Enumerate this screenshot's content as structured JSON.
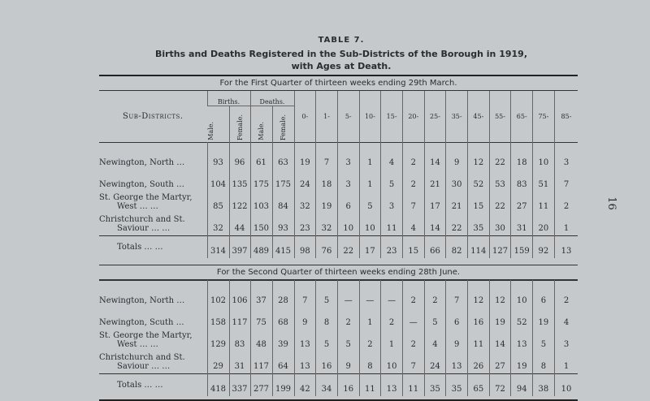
{
  "title": "TABLE 7.",
  "subtitle_line1": "Births and Deaths Registered in the Sub-Districts of the Borough in 1919,",
  "subtitle_line2": "with Ages at Death.",
  "page_number": "16",
  "headers": {
    "sub_districts": "Sub-Districts.",
    "births": "Births.",
    "deaths": "Deaths.",
    "male": "Male.",
    "female": "Female.",
    "ages": [
      "0-",
      "1-",
      "5-",
      "10-",
      "15-",
      "20-",
      "25-",
      "35-",
      "45-",
      "55-",
      "65-",
      "75-",
      "85-"
    ]
  },
  "quarters": [
    {
      "heading": "For the First Quarter of thirteen weeks ending 29th March.",
      "rows": [
        {
          "name": [
            "Newington, North …"
          ],
          "values": [
            "93",
            "96",
            "61",
            "63",
            "19",
            "7",
            "3",
            "1",
            "4",
            "2",
            "14",
            "9",
            "12",
            "22",
            "18",
            "10",
            "3"
          ]
        },
        {
          "name": [
            "Newington, South …"
          ],
          "values": [
            "104",
            "135",
            "175",
            "175",
            "24",
            "18",
            "3",
            "1",
            "5",
            "2",
            "21",
            "30",
            "52",
            "53",
            "83",
            "51",
            "7"
          ]
        },
        {
          "name": [
            "St. George the Martyr,",
            "West … …"
          ],
          "values": [
            "85",
            "122",
            "103",
            "84",
            "32",
            "19",
            "6",
            "5",
            "3",
            "7",
            "17",
            "21",
            "15",
            "22",
            "27",
            "11",
            "2"
          ]
        },
        {
          "name": [
            "Christchurch and St.",
            "Saviour … …"
          ],
          "values": [
            "32",
            "44",
            "150",
            "93",
            "23",
            "32",
            "10",
            "10",
            "11",
            "4",
            "14",
            "22",
            "35",
            "30",
            "31",
            "20",
            "1"
          ]
        }
      ],
      "totals": {
        "label": "Totals … …",
        "values": [
          "314",
          "397",
          "489",
          "415",
          "98",
          "76",
          "22",
          "17",
          "23",
          "15",
          "66",
          "82",
          "114",
          "127",
          "159",
          "92",
          "13"
        ]
      }
    },
    {
      "heading": "For the Second Quarter of thirteen weeks ending 28th June.",
      "rows": [
        {
          "name": [
            "Newington, North …"
          ],
          "values": [
            "102",
            "106",
            "37",
            "28",
            "7",
            "5",
            "—",
            "—",
            "—",
            "2",
            "2",
            "7",
            "12",
            "12",
            "10",
            "6",
            "2"
          ]
        },
        {
          "name": [
            "Newington, Scuth …"
          ],
          "values": [
            "158",
            "117",
            "75",
            "68",
            "9",
            "8",
            "2",
            "1",
            "2",
            "—",
            "5",
            "6",
            "16",
            "19",
            "52",
            "19",
            "4"
          ]
        },
        {
          "name": [
            "St. George the Martyr,",
            "West … …"
          ],
          "values": [
            "129",
            "83",
            "48",
            "39",
            "13",
            "5",
            "5",
            "2",
            "1",
            "2",
            "4",
            "9",
            "11",
            "14",
            "13",
            "5",
            "3"
          ]
        },
        {
          "name": [
            "Christchurch and St.",
            "Saviour … …"
          ],
          "values": [
            "29",
            "31",
            "117",
            "64",
            "13",
            "16",
            "9",
            "8",
            "10",
            "7",
            "24",
            "13",
            "26",
            "27",
            "19",
            "8",
            "1"
          ]
        }
      ],
      "totals": {
        "label": "Totals … …",
        "values": [
          "418",
          "337",
          "277",
          "199",
          "42",
          "34",
          "16",
          "11",
          "13",
          "11",
          "35",
          "35",
          "65",
          "72",
          "94",
          "38",
          "10"
        ]
      }
    }
  ]
}
